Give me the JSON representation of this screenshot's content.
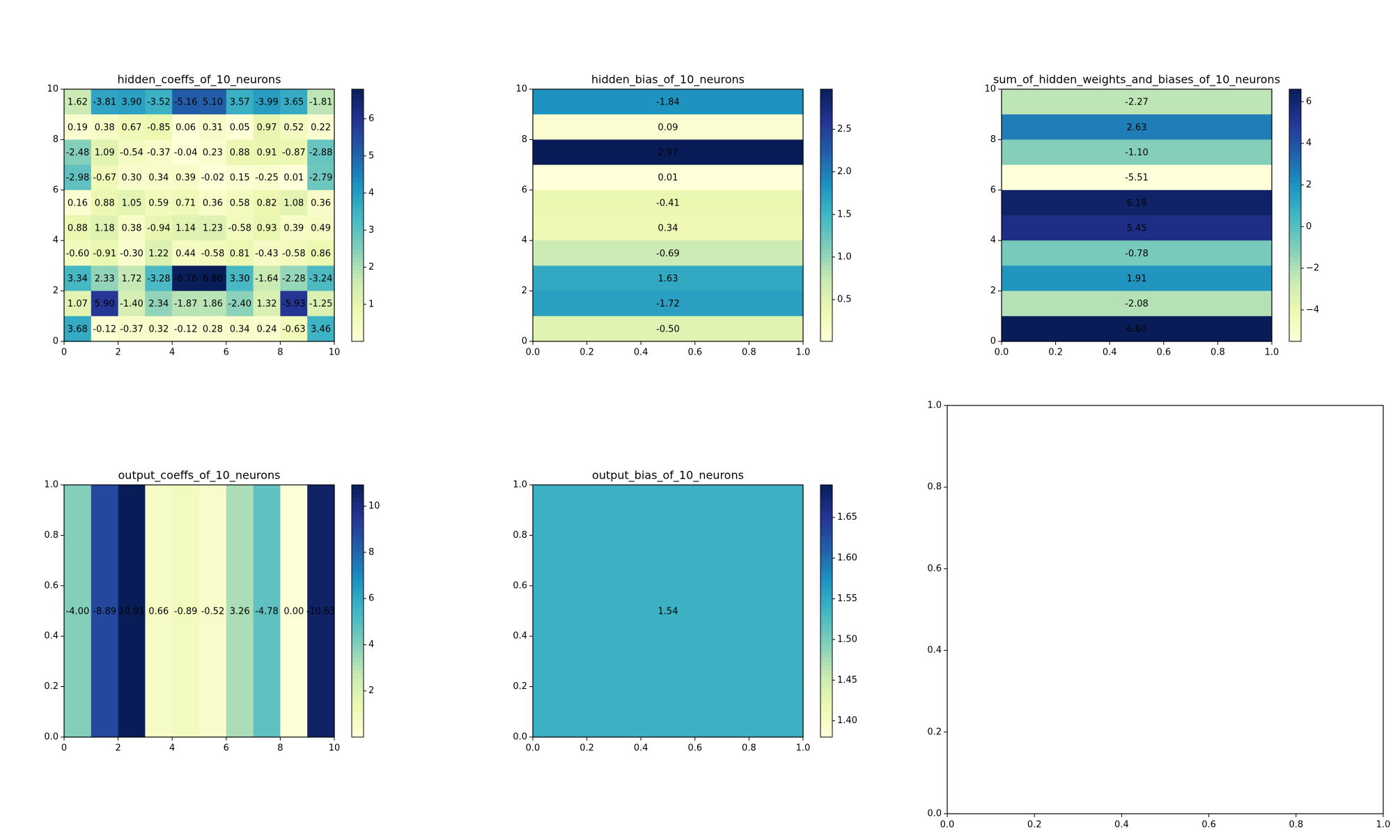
{
  "chart_data": [
    {
      "type": "heatmap",
      "title": "hidden_coeffs_of_10_neurons",
      "colormap": "YlGnBu",
      "color_by": "abs",
      "x_ticks": [
        "0",
        "2",
        "4",
        "6",
        "8",
        "10"
      ],
      "y_ticks": [
        "0",
        "2",
        "4",
        "6",
        "8",
        "10"
      ],
      "xlim": [
        0,
        10
      ],
      "ylim": [
        0,
        10
      ],
      "colorbar_range": [
        0,
        6.8
      ],
      "colorbar_ticks": [
        "1",
        "2",
        "3",
        "4",
        "5",
        "6"
      ],
      "rows_top_to_bottom": [
        [
          "1.62",
          "-3.81",
          "3.90",
          "-3.52",
          "-5.16",
          "5.10",
          "3.57",
          "-3.99",
          "3.65",
          "-1.81"
        ],
        [
          "0.19",
          "0.38",
          "0.67",
          "-0.85",
          "0.06",
          "0.31",
          "0.05",
          "0.97",
          "0.52",
          "0.22"
        ],
        [
          "-2.48",
          "1.09",
          "-0.54",
          "-0.37",
          "-0.04",
          "0.23",
          "0.88",
          "0.91",
          "-0.87",
          "-2.88"
        ],
        [
          "-2.98",
          "-0.67",
          "0.30",
          "0.34",
          "0.39",
          "-0.02",
          "0.15",
          "-0.25",
          "0.01",
          "-2.79"
        ],
        [
          "0.16",
          "0.88",
          "1.05",
          "0.59",
          "0.71",
          "0.36",
          "0.58",
          "0.82",
          "1.08",
          "0.36"
        ],
        [
          "0.88",
          "1.18",
          "0.38",
          "-0.94",
          "1.14",
          "1.23",
          "-0.58",
          "0.93",
          "0.39",
          "0.49"
        ],
        [
          "-0.60",
          "-0.91",
          "-0.30",
          "1.22",
          "0.44",
          "-0.58",
          "0.81",
          "-0.43",
          "-0.58",
          "0.86"
        ],
        [
          "3.34",
          "2.33",
          "1.72",
          "-3.28",
          "-6.76",
          "6.80",
          "3.30",
          "-1.64",
          "-2.28",
          "-3.24"
        ],
        [
          "1.07",
          "5.90",
          "-1.40",
          "2.34",
          "-1.87",
          "1.86",
          "-2.40",
          "1.32",
          "-5.93",
          "-1.25"
        ],
        [
          "3.68",
          "-0.12",
          "-0.37",
          "0.32",
          "-0.12",
          "0.28",
          "0.34",
          "0.24",
          "-0.63",
          "3.46"
        ]
      ]
    },
    {
      "type": "heatmap",
      "title": "hidden_bias_of_10_neurons",
      "colormap": "YlGnBu",
      "color_by": "abs",
      "x_ticks": [
        "0.0",
        "0.2",
        "0.4",
        "0.6",
        "0.8",
        "1.0"
      ],
      "y_ticks": [
        "0",
        "2",
        "4",
        "6",
        "8",
        "10"
      ],
      "xlim": [
        0,
        1
      ],
      "ylim": [
        0,
        10
      ],
      "colorbar_range": [
        0.01,
        2.97
      ],
      "colorbar_ticks": [
        "0.5",
        "1.0",
        "1.5",
        "2.0",
        "2.5"
      ],
      "rows_top_to_bottom": [
        [
          "-1.84"
        ],
        [
          "0.09"
        ],
        [
          "2.97"
        ],
        [
          "0.01"
        ],
        [
          "-0.41"
        ],
        [
          "0.34"
        ],
        [
          "-0.69"
        ],
        [
          "1.63"
        ],
        [
          "-1.72"
        ],
        [
          "-0.50"
        ]
      ]
    },
    {
      "type": "heatmap",
      "title": "sum_of_hidden_weights_and_biases_of_10_neurons",
      "colormap": "YlGnBu",
      "color_by": "value",
      "x_ticks": [
        "0.0",
        "0.2",
        "0.4",
        "0.6",
        "0.8",
        "1.0"
      ],
      "y_ticks": [
        "0",
        "2",
        "4",
        "6",
        "8",
        "10"
      ],
      "xlim": [
        0,
        1
      ],
      "ylim": [
        0,
        10
      ],
      "colorbar_range": [
        -5.51,
        6.6
      ],
      "colorbar_ticks": [
        "-4",
        "-2",
        "0",
        "2",
        "4",
        "6"
      ],
      "rows_top_to_bottom": [
        [
          "-2.27"
        ],
        [
          "2.63"
        ],
        [
          "-1.10"
        ],
        [
          "-5.51"
        ],
        [
          "6.18"
        ],
        [
          "5.45"
        ],
        [
          "-0.78"
        ],
        [
          "1.91"
        ],
        [
          "-2.08"
        ],
        [
          "6.60"
        ]
      ]
    },
    {
      "type": "heatmap",
      "title": "output_coeffs_of_10_neurons",
      "colormap": "YlGnBu",
      "color_by": "abs",
      "x_ticks": [
        "0",
        "2",
        "4",
        "6",
        "8",
        "10"
      ],
      "y_ticks": [
        "0.0",
        "0.2",
        "0.4",
        "0.6",
        "0.8",
        "1.0"
      ],
      "xlim": [
        0,
        10
      ],
      "ylim": [
        0,
        1
      ],
      "colorbar_range": [
        0,
        10.92
      ],
      "colorbar_ticks": [
        "2",
        "4",
        "6",
        "8",
        "10"
      ],
      "rows_top_to_bottom": [
        [
          "-4.00",
          "-8.89",
          "10.91",
          "0.66",
          "-0.89",
          "-0.52",
          "3.26",
          "-4.78",
          "0.00",
          "-10.63"
        ]
      ]
    },
    {
      "type": "heatmap",
      "title": "output_bias_of_10_neurons",
      "colormap": "YlGnBu",
      "color_by": "abs",
      "x_ticks": [
        "0.0",
        "0.2",
        "0.4",
        "0.6",
        "0.8",
        "1.0"
      ],
      "y_ticks": [
        "0.0",
        "0.2",
        "0.4",
        "0.6",
        "0.8",
        "1.0"
      ],
      "xlim": [
        0,
        1
      ],
      "ylim": [
        0,
        1
      ],
      "colorbar_range": [
        1.38,
        1.69
      ],
      "colorbar_ticks": [
        "1.40",
        "1.45",
        "1.50",
        "1.55",
        "1.60",
        "1.65"
      ],
      "rows_top_to_bottom": [
        [
          "1.54"
        ]
      ]
    },
    {
      "type": "empty",
      "x_ticks": [
        "0.0",
        "0.2",
        "0.4",
        "0.6",
        "0.8",
        "1.0"
      ],
      "y_ticks": [
        "0.0",
        "0.2",
        "0.4",
        "0.6",
        "0.8",
        "1.0"
      ],
      "xlim": [
        0,
        1
      ],
      "ylim": [
        0,
        1
      ]
    }
  ]
}
